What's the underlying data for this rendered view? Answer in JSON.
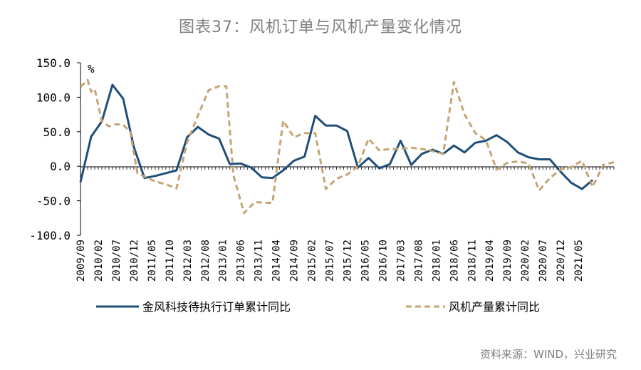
{
  "page": {
    "title": "图表37：风机订单与风机产量变化情况",
    "source": "资料来源：WIND，兴业研究"
  },
  "chart_data": {
    "type": "line",
    "title": "图表37：风机订单与风机产量变化情况",
    "ylabel": "%",
    "ylim": [
      -100,
      150
    ],
    "yticks": [
      150,
      100,
      50,
      0,
      -50,
      -100
    ],
    "ytick_labels": [
      "150.0",
      "100.0",
      "50.0",
      "0.0",
      "-50.0",
      "-100.0"
    ],
    "x_start": "2009/09",
    "x_labels": [
      "2009/09",
      "2010/02",
      "2010/07",
      "2010/12",
      "2011/05",
      "2011/10",
      "2012/03",
      "2012/08",
      "2013/01",
      "2013/06",
      "2013/11",
      "2014/04",
      "2014/09",
      "2015/02",
      "2015/07",
      "2015/12",
      "2016/05",
      "2016/10",
      "2017/03",
      "2017/08",
      "2018/01",
      "2018/06",
      "2018/11",
      "2019/04",
      "2019/09",
      "2020/02",
      "2020/07",
      "2020/12",
      "2021/05"
    ],
    "x_label_step_months": 5,
    "legend_position": "bottom",
    "series": [
      {
        "name": "金风科技待执行订单累计同比",
        "color": "#1f4e79",
        "style": "solid",
        "points": [
          [
            0,
            -23
          ],
          [
            3,
            43
          ],
          [
            6,
            65
          ],
          [
            9,
            118
          ],
          [
            12,
            98
          ],
          [
            15,
            28
          ],
          [
            18,
            -17
          ],
          [
            21,
            -14
          ],
          [
            24,
            -10
          ],
          [
            27,
            -6
          ],
          [
            30,
            42
          ],
          [
            33,
            57
          ],
          [
            36,
            46
          ],
          [
            39,
            40
          ],
          [
            42,
            3
          ],
          [
            45,
            4
          ],
          [
            48,
            -2
          ],
          [
            51,
            -16
          ],
          [
            54,
            -17
          ],
          [
            57,
            -6
          ],
          [
            60,
            8
          ],
          [
            63,
            14
          ],
          [
            66,
            73
          ],
          [
            69,
            59
          ],
          [
            72,
            59
          ],
          [
            75,
            51
          ],
          [
            78,
            -2
          ],
          [
            81,
            12
          ],
          [
            84,
            -3
          ],
          [
            87,
            3
          ],
          [
            90,
            37
          ],
          [
            93,
            2
          ],
          [
            96,
            18
          ],
          [
            99,
            24
          ],
          [
            102,
            18
          ],
          [
            105,
            30
          ],
          [
            108,
            20
          ],
          [
            111,
            34
          ],
          [
            114,
            37
          ],
          [
            117,
            45
          ],
          [
            120,
            35
          ],
          [
            123,
            20
          ],
          [
            126,
            13
          ],
          [
            129,
            10
          ],
          [
            132,
            10
          ],
          [
            135,
            -8
          ],
          [
            138,
            -24
          ],
          [
            141,
            -33
          ],
          [
            144,
            -20
          ]
        ]
      },
      {
        "name": "风机产量累计同比",
        "color": "#c4a574",
        "style": "dashed",
        "points": [
          [
            0,
            115
          ],
          [
            2,
            125
          ],
          [
            3,
            108
          ],
          [
            4,
            112
          ],
          [
            6,
            65
          ],
          [
            8,
            58
          ],
          [
            10,
            61
          ],
          [
            12,
            60
          ],
          [
            14,
            50
          ],
          [
            16,
            -10
          ],
          [
            18,
            -15
          ],
          [
            21,
            -22
          ],
          [
            24,
            -26
          ],
          [
            27,
            -32
          ],
          [
            30,
            35
          ],
          [
            33,
            73
          ],
          [
            36,
            110
          ],
          [
            39,
            116
          ],
          [
            41,
            116
          ],
          [
            43,
            -13
          ],
          [
            46,
            -68
          ],
          [
            49,
            -52
          ],
          [
            52,
            -53
          ],
          [
            54,
            -53
          ],
          [
            57,
            66
          ],
          [
            60,
            42
          ],
          [
            63,
            48
          ],
          [
            66,
            48
          ],
          [
            69,
            -33
          ],
          [
            72,
            -18
          ],
          [
            75,
            -12
          ],
          [
            78,
            0
          ],
          [
            81,
            40
          ],
          [
            84,
            23
          ],
          [
            87,
            25
          ],
          [
            90,
            25
          ],
          [
            93,
            27
          ],
          [
            96,
            25
          ],
          [
            99,
            22
          ],
          [
            102,
            18
          ],
          [
            105,
            122
          ],
          [
            108,
            75
          ],
          [
            111,
            48
          ],
          [
            114,
            38
          ],
          [
            117,
            -5
          ],
          [
            120,
            5
          ],
          [
            123,
            7
          ],
          [
            126,
            4
          ],
          [
            129,
            -35
          ],
          [
            132,
            -17
          ],
          [
            135,
            -5
          ],
          [
            138,
            -1
          ],
          [
            141,
            8
          ],
          [
            144,
            -30
          ],
          [
            147,
            2
          ],
          [
            150,
            6
          ]
        ]
      }
    ]
  }
}
